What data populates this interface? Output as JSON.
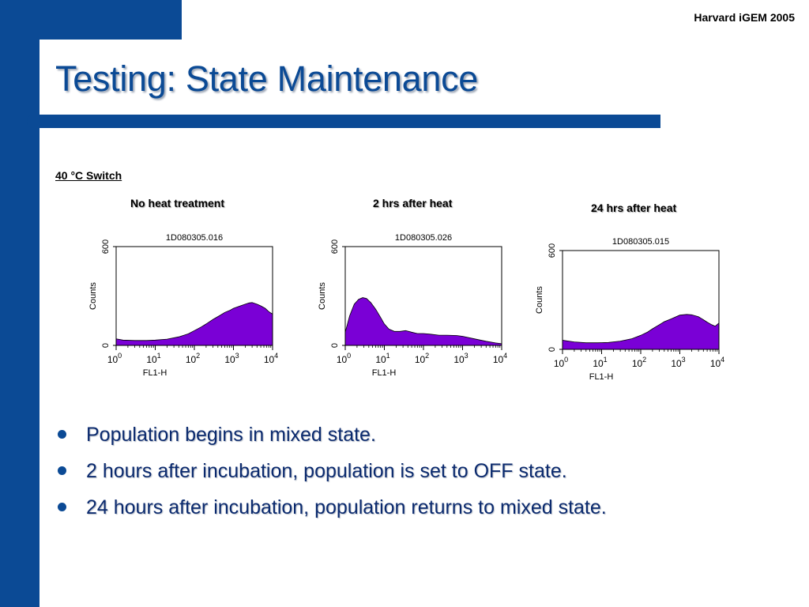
{
  "header": {
    "org_label": "Harvard iGEM 2005"
  },
  "slide": {
    "title": "Testing: State Maintenance",
    "section_label": "40 °C Switch"
  },
  "colors": {
    "accent": "#0b4a95",
    "histogram_fill": "#7a00d6",
    "histogram_outline": "#000000"
  },
  "chart_data": [
    {
      "type": "area",
      "panel_label": "No heat treatment",
      "sample_id": "1D080305.016",
      "xlabel": "FL1-H",
      "ylabel": "Counts",
      "xscale": "log",
      "xlim": [
        1,
        10000
      ],
      "ylim": [
        0,
        600
      ],
      "yticks": [
        "0",
        "600"
      ],
      "xticks": [
        "10^0",
        "10^1",
        "10^2",
        "10^3",
        "10^4"
      ],
      "x": [
        1,
        1.5,
        3,
        6,
        10,
        20,
        40,
        70,
        100,
        150,
        200,
        300,
        450,
        600,
        800,
        1000,
        1500,
        2000,
        2500,
        3000,
        4000,
        5000,
        6500,
        8000,
        10000
      ],
      "y": [
        40,
        32,
        30,
        30,
        32,
        38,
        52,
        70,
        90,
        112,
        130,
        158,
        182,
        200,
        212,
        225,
        240,
        250,
        258,
        260,
        250,
        240,
        225,
        205,
        190
      ]
    },
    {
      "type": "area",
      "panel_label": "2 hrs after heat",
      "sample_id": "1D080305.026",
      "xlabel": "FL1-H",
      "ylabel": "Counts",
      "xscale": "log",
      "xlim": [
        1,
        10000
      ],
      "ylim": [
        0,
        600
      ],
      "yticks": [
        "0",
        "600"
      ],
      "xticks": [
        "10^0",
        "10^1",
        "10^2",
        "10^3",
        "10^4"
      ],
      "x": [
        1,
        1.3,
        1.7,
        2.2,
        2.8,
        3.5,
        4.5,
        6,
        8,
        10,
        13,
        18,
        25,
        35,
        50,
        70,
        100,
        150,
        250,
        400,
        700,
        1000,
        2000,
        4000,
        7000,
        10000
      ],
      "y": [
        80,
        180,
        250,
        280,
        290,
        285,
        260,
        220,
        170,
        130,
        100,
        85,
        85,
        90,
        80,
        72,
        72,
        68,
        62,
        62,
        60,
        55,
        40,
        25,
        15,
        10
      ]
    },
    {
      "type": "area",
      "panel_label": "24 hrs after heat",
      "sample_id": "1D080305.015",
      "xlabel": "FL1-H",
      "ylabel": "Counts",
      "xscale": "log",
      "xlim": [
        1,
        10000
      ],
      "ylim": [
        0,
        600
      ],
      "yticks": [
        "0",
        "600"
      ],
      "xticks": [
        "10^0",
        "10^1",
        "10^2",
        "10^3",
        "10^4"
      ],
      "x": [
        1,
        2,
        4,
        8,
        15,
        30,
        60,
        100,
        150,
        200,
        300,
        400,
        600,
        800,
        1000,
        1500,
        2000,
        3000,
        4000,
        5000,
        6500,
        8000,
        10000
      ],
      "y": [
        55,
        45,
        40,
        40,
        42,
        50,
        65,
        85,
        105,
        125,
        150,
        168,
        185,
        198,
        208,
        212,
        210,
        198,
        180,
        165,
        150,
        140,
        160
      ]
    }
  ],
  "bullets": [
    "Population begins in mixed state.",
    "2 hours after incubation, population is set to OFF state.",
    "24 hours after incubation, population returns to mixed state."
  ]
}
